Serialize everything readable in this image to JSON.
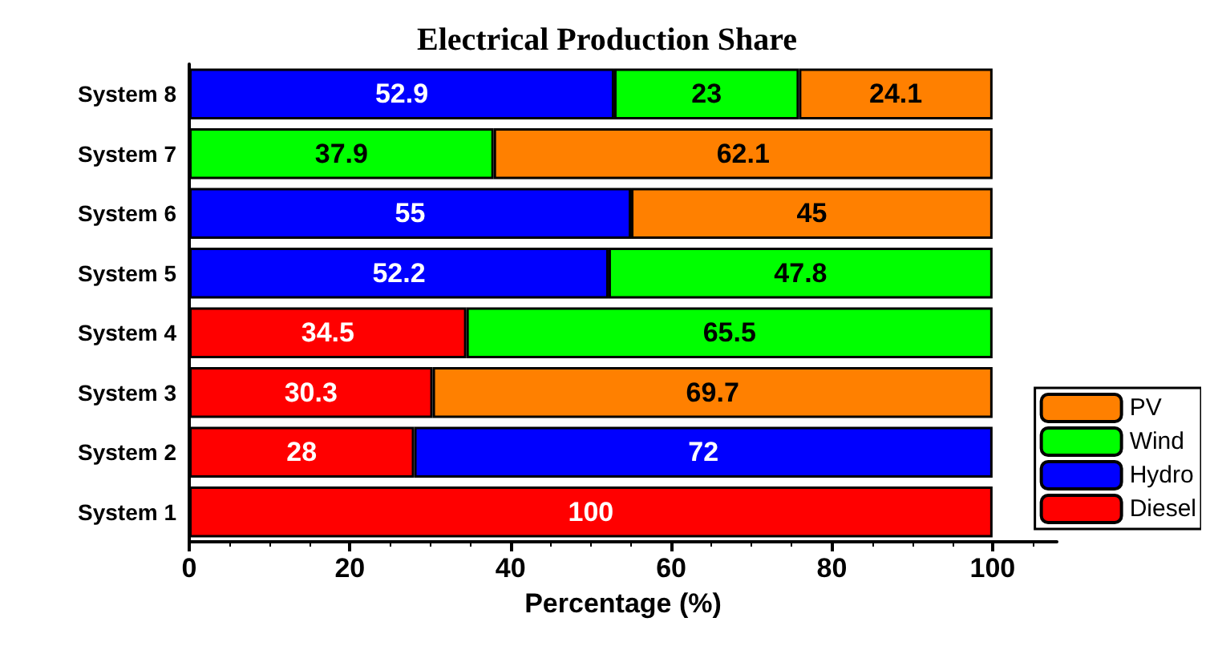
{
  "chart_data": {
    "type": "bar",
    "orientation": "horizontal",
    "stacked": true,
    "title": "Electrical Production Share",
    "xlabel": "Percentage (%)",
    "categories": [
      "System 8",
      "System 7",
      "System 6",
      "System 5",
      "System 4",
      "System 3",
      "System 2",
      "System 1"
    ],
    "series": [
      {
        "name": "Diesel",
        "color": "#ff0000",
        "values": [
          null,
          null,
          null,
          null,
          34.5,
          30.3,
          28,
          100
        ]
      },
      {
        "name": "Hydro",
        "color": "#0000ff",
        "values": [
          52.9,
          null,
          55,
          52.2,
          null,
          null,
          72,
          null
        ]
      },
      {
        "name": "Wind",
        "color": "#00ff00",
        "values": [
          23,
          37.9,
          null,
          47.8,
          65.5,
          null,
          null,
          null
        ]
      },
      {
        "name": "PV",
        "color": "#ff8000",
        "values": [
          24.1,
          62.1,
          45,
          null,
          null,
          69.7,
          null,
          null
        ]
      }
    ],
    "xlim": [
      0,
      108
    ],
    "xticks": [
      0,
      20,
      40,
      60,
      80,
      100
    ],
    "data_labels": true,
    "legend": "bottom right",
    "grid": false
  }
}
